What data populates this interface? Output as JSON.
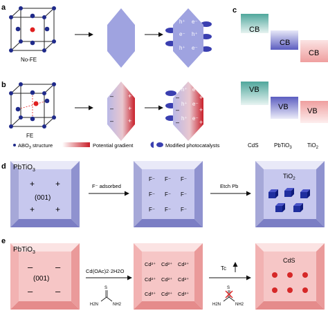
{
  "panels": {
    "a": "a",
    "b": "b",
    "c": "c",
    "d": "d",
    "e": "e"
  },
  "panel_a": {
    "cube_label": "No-FE",
    "charges": [
      "h⁺",
      "e⁻",
      "e⁻",
      "h⁺",
      "h⁺",
      "e⁻"
    ]
  },
  "panel_b": {
    "cube_label": "FE",
    "left_signs": [
      "–",
      "–",
      "–"
    ],
    "right_signs": [
      "+",
      "+",
      "+"
    ],
    "charges": [
      "h⁺",
      "e⁻",
      "h⁺",
      "e⁻",
      "h⁺",
      "e⁻"
    ],
    "mod_left_signs": [
      "–",
      "–",
      "–"
    ],
    "mod_right_signs": [
      "+",
      "+",
      "+"
    ]
  },
  "legend": {
    "structure": "ABO3 structure",
    "structure_main": "ABO",
    "structure_sub": "3",
    "structure_rest": " structure",
    "gradient": "Potential gradient",
    "modified": "Modified photocatalysts"
  },
  "panel_c": {
    "cb_labels": [
      "CB",
      "CB",
      "CB"
    ],
    "vb_labels": [
      "VB",
      "VB",
      "VB"
    ],
    "materials": [
      "CdS",
      "PbTiO3",
      "TiO2"
    ],
    "mat2_main": "PbTiO",
    "mat2_sub": "3",
    "mat3_main": "TiO",
    "mat3_sub": "2",
    "colors": [
      "#5fb3a8",
      "#6d6fc4",
      "#f0a7a7"
    ]
  },
  "panel_d": {
    "title_main": "PbTiO",
    "title_sub": "3",
    "facet": "(001)",
    "plus_signs": [
      "+",
      "+",
      "+",
      "+"
    ],
    "step1": "F⁻ adsorbed",
    "f_ions": [
      "F⁻",
      "F⁻",
      "F⁻",
      "F⁻",
      "F⁻",
      "F⁻",
      "F⁻",
      "F⁻",
      "F⁻"
    ],
    "step2": "Etch Pb",
    "product_main": "TiO",
    "product_sub": "2"
  },
  "panel_e": {
    "title_main": "PbTiO",
    "title_sub": "3",
    "facet": "(001)",
    "minus_signs": [
      "–",
      "–",
      "–",
      "–"
    ],
    "reagent": "Cd(OAc)2·2H2O",
    "cd_ions": [
      "Cd²⁺",
      "Cd²⁺",
      "Cd²⁺",
      "Cd²⁺",
      "Cd²⁺",
      "Cd²⁺",
      "Cd²⁺",
      "Cd²⁺",
      "Cd²⁺"
    ],
    "tc_label": "Tc",
    "product": "CdS",
    "thiourea_s": "S",
    "thiourea_nh2": "NH2",
    "thiourea_h2n": "H2N"
  }
}
